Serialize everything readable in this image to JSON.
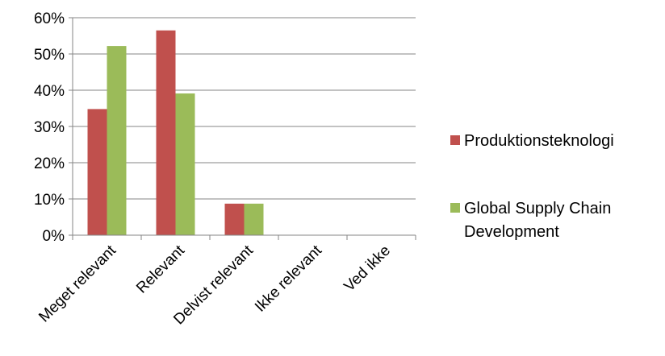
{
  "chart_data": {
    "type": "bar",
    "title": "",
    "xlabel": "",
    "ylabel": "",
    "categories": [
      "Meget relevant",
      "Relevant",
      "Delvist relevant",
      "Ikke relevant",
      "Ved ikke"
    ],
    "series": [
      {
        "name": "Produktionsteknologi",
        "color": "#C0504D",
        "values": [
          0.348,
          0.565,
          0.087,
          0,
          0
        ]
      },
      {
        "name": "Global Supply Chain Development",
        "name_lines": [
          "Global Supply Chain",
          "Development"
        ],
        "color": "#9BBB59",
        "values": [
          0.522,
          0.391,
          0.087,
          0,
          0
        ]
      }
    ],
    "ylim": [
      0,
      0.6
    ],
    "yticks": [
      0,
      0.1,
      0.2,
      0.3,
      0.4,
      0.5,
      0.6
    ],
    "ytick_labels": [
      "0%",
      "10%",
      "20%",
      "30%",
      "40%",
      "50%",
      "60%"
    ],
    "grid": true,
    "legend_position": "right"
  }
}
